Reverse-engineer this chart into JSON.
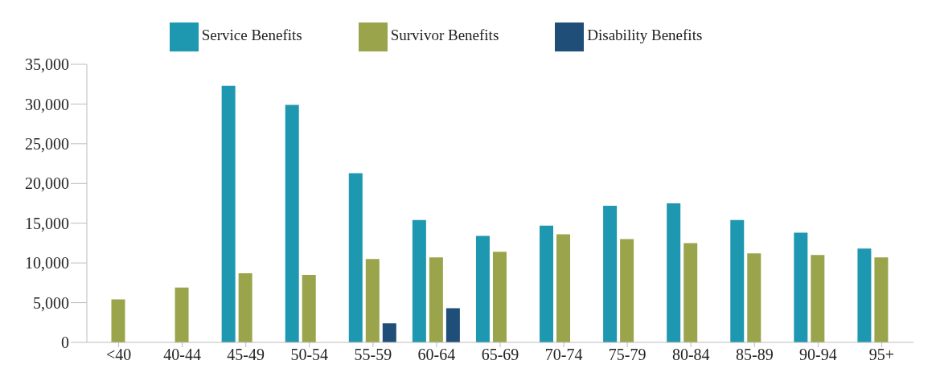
{
  "chart_data": {
    "type": "bar",
    "categories": [
      "<40",
      "40-44",
      "45-49",
      "50-54",
      "55-59",
      "60-64",
      "65-69",
      "70-74",
      "75-79",
      "80-84",
      "85-89",
      "90-94",
      "95+"
    ],
    "series": [
      {
        "name": "Service Benefits",
        "color": "#1e98b0",
        "values": [
          null,
          null,
          32300,
          29900,
          21300,
          15400,
          13400,
          14700,
          17200,
          17500,
          15400,
          13800,
          11800
        ]
      },
      {
        "name": "Survivor Benefits",
        "color": "#9aa44b",
        "values": [
          5400,
          6900,
          8700,
          8500,
          10500,
          10700,
          11400,
          13600,
          13000,
          12500,
          11200,
          11000,
          10700
        ]
      },
      {
        "name": "Disability Benefits",
        "color": "#1f4e79",
        "values": [
          null,
          null,
          null,
          null,
          2400,
          4300,
          null,
          null,
          null,
          null,
          null,
          null,
          null
        ]
      }
    ],
    "ylim": [
      0,
      35000
    ],
    "yticks": [
      {
        "value": 0,
        "label": "0"
      },
      {
        "value": 5000,
        "label": "5,000"
      },
      {
        "value": 10000,
        "label": "10,000"
      },
      {
        "value": 15000,
        "label": "15,000"
      },
      {
        "value": 20000,
        "label": "20,000"
      },
      {
        "value": 25000,
        "label": "25,000"
      },
      {
        "value": 30000,
        "label": "30,000"
      },
      {
        "value": 35000,
        "label": "35,000"
      }
    ],
    "legend": "top",
    "grid": false
  }
}
